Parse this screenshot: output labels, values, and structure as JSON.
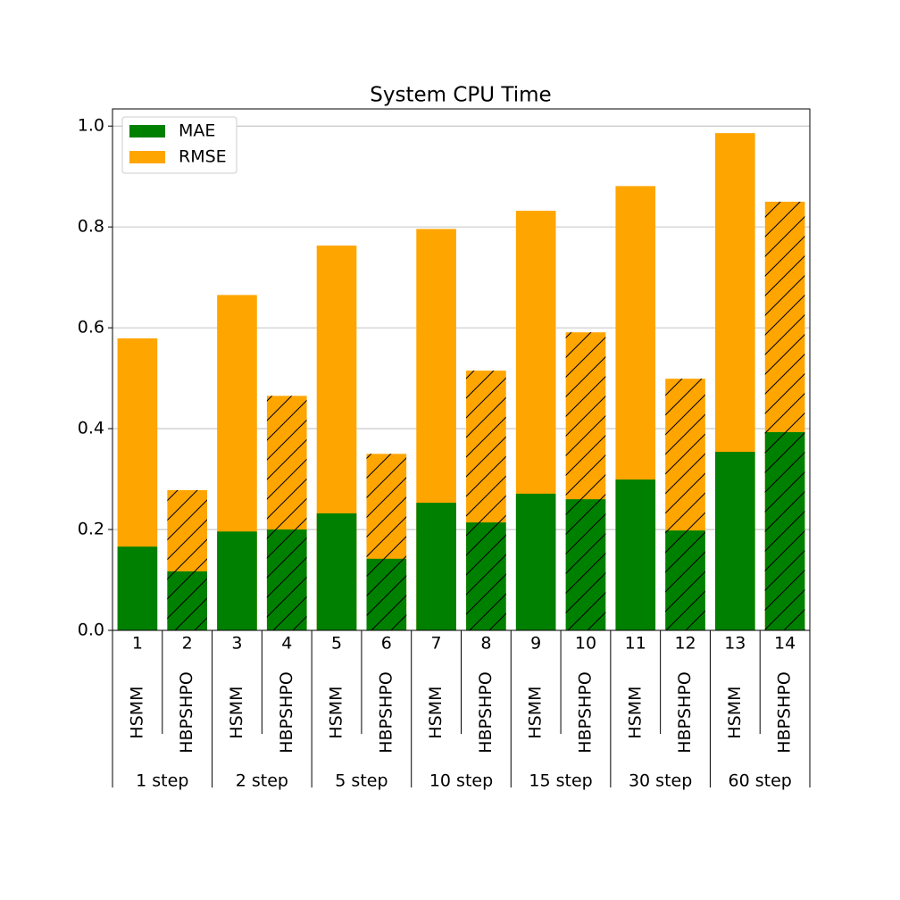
{
  "chart_data": {
    "type": "bar",
    "title": "System CPU Time",
    "categories": [
      "1",
      "2",
      "3",
      "4",
      "5",
      "6",
      "7",
      "8",
      "9",
      "10",
      "11",
      "12",
      "13",
      "14"
    ],
    "models": [
      "HSMM",
      "HBPSHPO",
      "HSMM",
      "HBPSHPO",
      "HSMM",
      "HBPSHPO",
      "HSMM",
      "HBPSHPO",
      "HSMM",
      "HBPSHPO",
      "HSMM",
      "HBPSHPO",
      "HSMM",
      "HBPSHPO"
    ],
    "groups": [
      "1 step",
      "2 step",
      "5 step",
      "10 step",
      "15 step",
      "30 step",
      "60 step"
    ],
    "series": [
      {
        "name": "MAE",
        "color": "#008000",
        "values": [
          0.166,
          0.117,
          0.196,
          0.2,
          0.232,
          0.142,
          0.253,
          0.214,
          0.271,
          0.26,
          0.299,
          0.198,
          0.354,
          0.393
        ]
      },
      {
        "name": "RMSE",
        "color": "#ffa500",
        "values": [
          0.579,
          0.278,
          0.665,
          0.465,
          0.763,
          0.35,
          0.796,
          0.515,
          0.832,
          0.591,
          0.881,
          0.499,
          0.986,
          0.85
        ]
      }
    ],
    "ylim": [
      0,
      1.034
    ],
    "yticks": [
      {
        "value": 0,
        "label": "0.0"
      },
      0.2,
      0.4,
      0.6,
      0.8,
      {
        "value": 1,
        "label": "1.0"
      }
    ],
    "grid": true,
    "legend": "upper left"
  }
}
